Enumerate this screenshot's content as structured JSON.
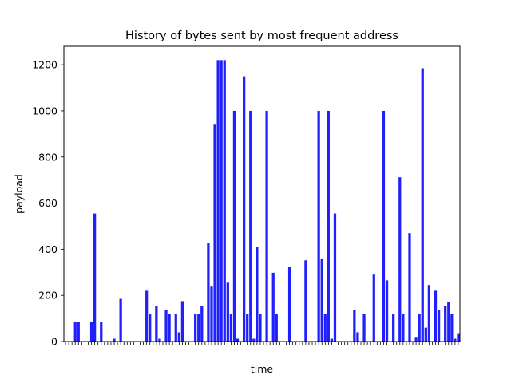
{
  "chart_data": {
    "type": "bar",
    "title": "History of bytes sent by most frequent address",
    "xlabel": "time",
    "ylabel": "payload",
    "ylim": [
      0,
      1280
    ],
    "yticks": [
      0,
      200,
      400,
      600,
      800,
      1000,
      1200
    ],
    "grid": false,
    "legend": "none",
    "bar_color": "#0000ff",
    "x_tick_labels_note": "x tick labels are dense overlapping timestamps and are not legible",
    "series": [
      {
        "values": [
          0,
          0,
          0,
          84,
          84,
          0,
          0,
          0,
          84,
          555,
          0,
          84,
          0,
          0,
          0,
          12,
          0,
          185,
          0,
          0,
          0,
          0,
          0,
          0,
          0,
          220,
          120,
          0,
          155,
          12,
          0,
          135,
          120,
          0,
          120,
          40,
          175,
          0,
          0,
          0,
          120,
          120,
          155,
          0,
          428,
          238,
          940,
          1220,
          1220,
          1220,
          255,
          120,
          1000,
          12,
          0,
          1150,
          120,
          1000,
          12,
          410,
          120,
          0,
          1000,
          0,
          298,
          120,
          0,
          0,
          0,
          325,
          0,
          0,
          0,
          0,
          352,
          0,
          0,
          0,
          1000,
          360,
          120,
          1000,
          12,
          555,
          0,
          0,
          0,
          0,
          0,
          135,
          40,
          0,
          120,
          0,
          0,
          290,
          0,
          0,
          1000,
          265,
          0,
          120,
          0,
          712,
          120,
          0,
          470,
          0,
          20,
          120,
          1185,
          60,
          245,
          0,
          220,
          135,
          0,
          155,
          170,
          120,
          12,
          36
        ]
      }
    ]
  }
}
